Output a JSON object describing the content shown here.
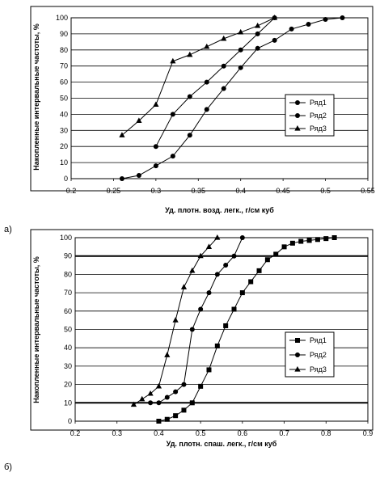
{
  "chart_data": [
    {
      "type": "line",
      "panel_label": "а)",
      "title": "",
      "xlabel": "Уд. плотн. возд. легк., г/см куб",
      "ylabel": "Накопленные интервальные частоты, %",
      "xlim": [
        0.2,
        0.55
      ],
      "ylim": [
        0,
        100
      ],
      "xticks": [
        "0.2",
        "0.25",
        "0.3",
        "0.35",
        "0.4",
        "0.45",
        "0.5",
        "0.55"
      ],
      "yticks": [
        "0",
        "10",
        "20",
        "30",
        "40",
        "50",
        "60",
        "70",
        "80",
        "90",
        "100"
      ],
      "grid": true,
      "legend_position": "right",
      "series": [
        {
          "name": "Ряд1",
          "marker": "circle",
          "x": [
            0.26,
            0.28,
            0.3,
            0.32,
            0.34,
            0.36,
            0.38,
            0.4,
            0.42,
            0.44,
            0.46,
            0.48,
            0.5,
            0.52
          ],
          "y": [
            0,
            2,
            8,
            14,
            27,
            43,
            56,
            69,
            81,
            86,
            93,
            96,
            99,
            100
          ]
        },
        {
          "name": "Ряд2",
          "marker": "circle",
          "x": [
            0.3,
            0.32,
            0.34,
            0.36,
            0.38,
            0.4,
            0.42,
            0.44
          ],
          "y": [
            20,
            40,
            51,
            60,
            70,
            80,
            90,
            100
          ]
        },
        {
          "name": "Ряд3",
          "marker": "triangle",
          "x": [
            0.26,
            0.28,
            0.3,
            0.32,
            0.34,
            0.36,
            0.38,
            0.4,
            0.42,
            0.44
          ],
          "y": [
            27,
            36,
            46,
            73,
            77,
            82,
            87,
            91,
            95,
            100
          ]
        }
      ]
    },
    {
      "type": "line",
      "panel_label": "б)",
      "title": "",
      "xlabel": "Уд. плотн. спаш. легк., г/см куб",
      "ylabel": "Накопленные интервальные частоты, %",
      "xlim": [
        0.2,
        0.9
      ],
      "ylim": [
        0,
        100
      ],
      "xticks": [
        "0.2",
        "0.3",
        "0.4",
        "0.5",
        "0.6",
        "0.7",
        "0.8",
        "0.9"
      ],
      "yticks": [
        "0",
        "10",
        "20",
        "30",
        "40",
        "50",
        "60",
        "70",
        "80",
        "90",
        "100"
      ],
      "grid": true,
      "legend_position": "right",
      "series": [
        {
          "name": "Ряд1",
          "marker": "square",
          "x": [
            0.4,
            0.42,
            0.44,
            0.46,
            0.48,
            0.5,
            0.52,
            0.54,
            0.56,
            0.58,
            0.6,
            0.62,
            0.64,
            0.66,
            0.68,
            0.7,
            0.72,
            0.74,
            0.76,
            0.78,
            0.8,
            0.82
          ],
          "y": [
            0,
            1,
            3,
            6,
            10,
            19,
            28,
            41,
            52,
            61,
            70,
            76,
            82,
            88,
            91,
            95,
            97,
            98,
            98.5,
            99,
            99.5,
            100
          ]
        },
        {
          "name": "Ряд2",
          "marker": "circle",
          "x": [
            0.38,
            0.4,
            0.42,
            0.44,
            0.46,
            0.48,
            0.5,
            0.52,
            0.54,
            0.56,
            0.58,
            0.6
          ],
          "y": [
            10,
            10,
            13,
            16,
            20,
            50,
            61,
            70,
            80,
            85,
            90,
            100
          ]
        },
        {
          "name": "Ряд3",
          "marker": "triangle",
          "x": [
            0.34,
            0.36,
            0.38,
            0.4,
            0.42,
            0.44,
            0.46,
            0.48,
            0.5,
            0.52,
            0.54
          ],
          "y": [
            9,
            12,
            15,
            19,
            36,
            55,
            73,
            82,
            90,
            95,
            100
          ]
        }
      ]
    }
  ]
}
